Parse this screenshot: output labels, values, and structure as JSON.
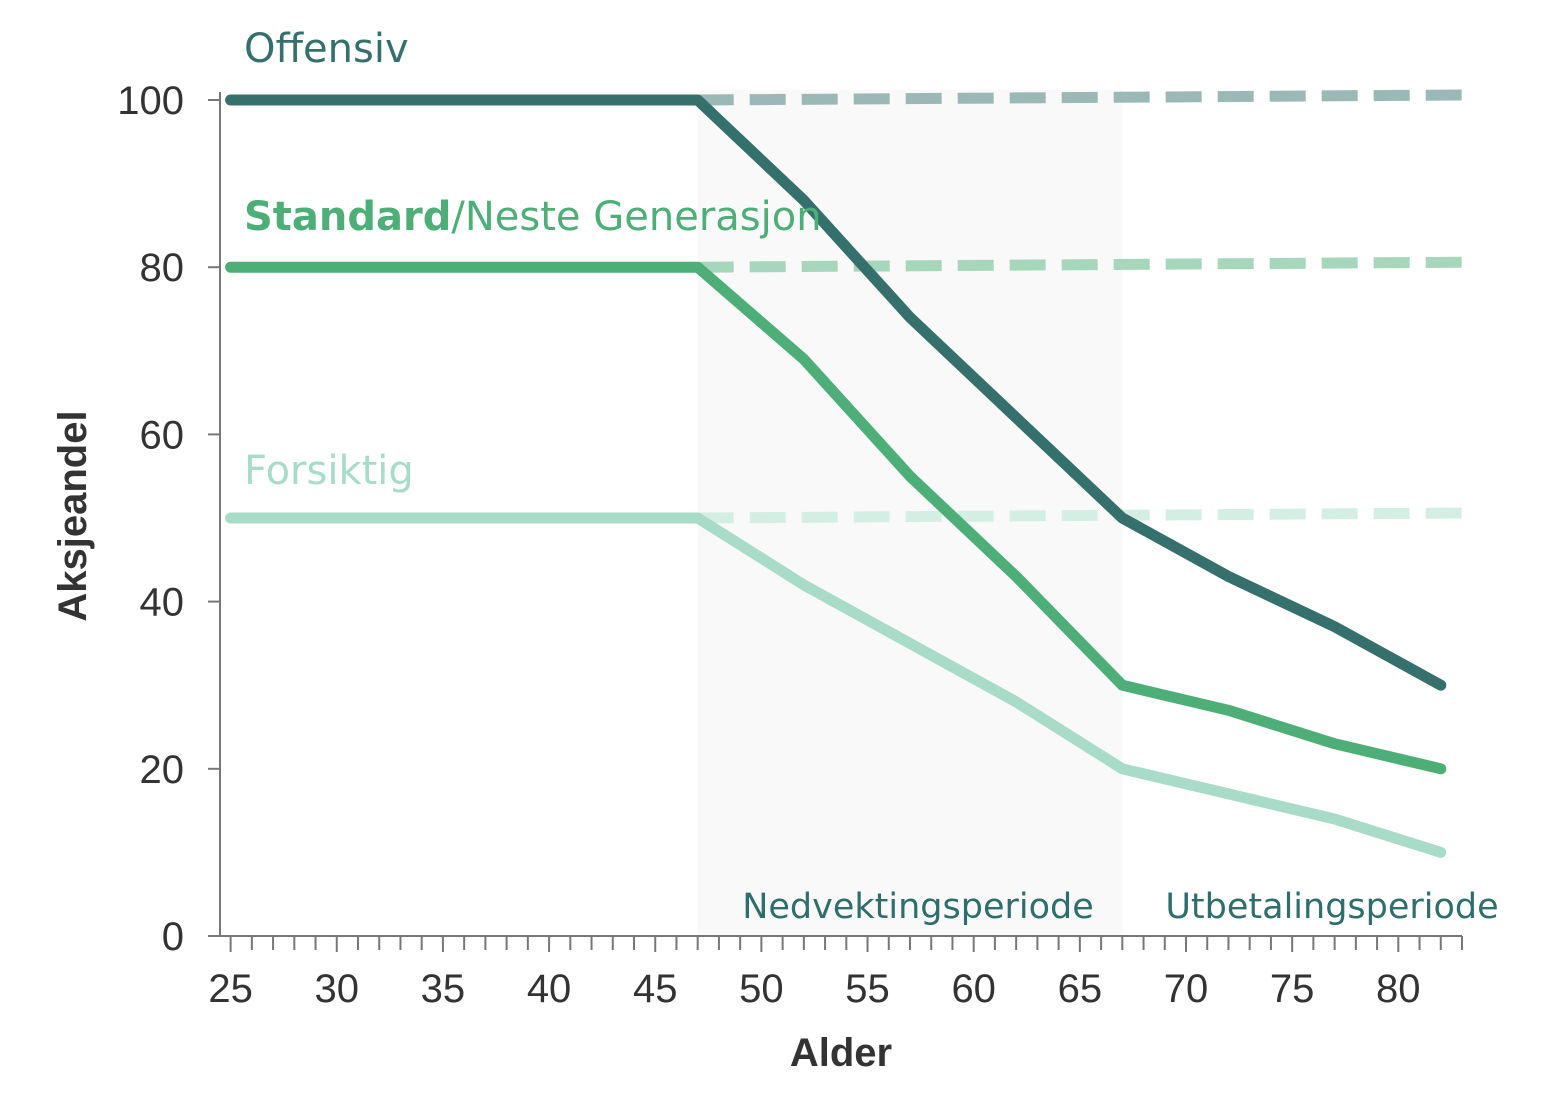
{
  "chart_data": {
    "type": "line",
    "xlabel": "Alder",
    "ylabel": "Aksjeandel",
    "xlim": [
      24.5,
      83
    ],
    "ylim": [
      0,
      100
    ],
    "x_ticks": [
      25,
      30,
      35,
      40,
      45,
      50,
      55,
      60,
      65,
      70,
      75,
      80
    ],
    "y_ticks": [
      0,
      20,
      40,
      60,
      80,
      100
    ],
    "grid": false,
    "periods": [
      {
        "name": "Nedvektingsperiode",
        "start": 47,
        "end": 67,
        "shaded": true
      },
      {
        "name": "Utbetalingsperiode",
        "start": 67,
        "end": 82,
        "shaded": false
      }
    ],
    "series": [
      {
        "label_parts": [
          "Offensiv"
        ],
        "color": "#35706d",
        "x": [
          25,
          47,
          52,
          57,
          62,
          67,
          72,
          77,
          82
        ],
        "y": [
          100,
          100,
          88,
          74,
          62,
          50,
          43,
          37,
          30
        ],
        "flat_dashed": {
          "x": [
            47,
            83
          ],
          "y": [
            100,
            100
          ]
        }
      },
      {
        "label_parts": [
          "Standard",
          "/Neste Generasjon"
        ],
        "color": "#4dae77",
        "x": [
          25,
          47,
          52,
          57,
          62,
          67,
          72,
          77,
          82
        ],
        "y": [
          80,
          80,
          69,
          55,
          43,
          30,
          27,
          23,
          20
        ],
        "flat_dashed": {
          "x": [
            47,
            83
          ],
          "y": [
            80,
            80
          ]
        }
      },
      {
        "label_parts": [
          "Forsiktig"
        ],
        "color": "#a8dcc9",
        "x": [
          25,
          47,
          52,
          57,
          62,
          67,
          72,
          77,
          82
        ],
        "y": [
          50,
          50,
          42,
          35,
          28,
          20,
          17,
          14,
          10
        ],
        "flat_dashed": {
          "x": [
            47,
            83
          ],
          "y": [
            50,
            50
          ]
        }
      }
    ],
    "dashed_colors": [
      "#9bb8b7",
      "#a6d6bb",
      "#d5eee4"
    ]
  }
}
